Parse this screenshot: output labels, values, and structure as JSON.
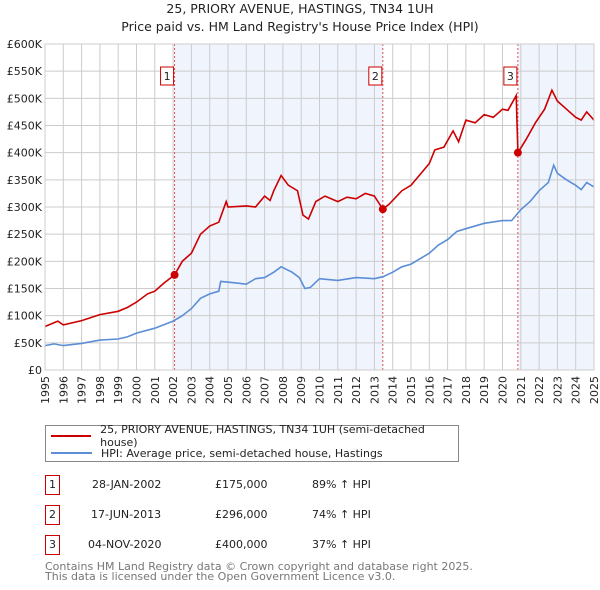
{
  "chart_data": {
    "type": "line",
    "title": "25, PRIORY AVENUE, HASTINGS, TN34 1UH",
    "subtitle": "Price paid vs. HM Land Registry's House Price Index (HPI)",
    "xlim": [
      1995,
      2025
    ],
    "ylim": [
      0,
      600000
    ],
    "x_ticks": [
      "1995",
      "1996",
      "1997",
      "1998",
      "1999",
      "2000",
      "2001",
      "2002",
      "2003",
      "2004",
      "2005",
      "2006",
      "2007",
      "2008",
      "2009",
      "2010",
      "2011",
      "2012",
      "2013",
      "2014",
      "2015",
      "2016",
      "2017",
      "2018",
      "2019",
      "2020",
      "2021",
      "2022",
      "2023",
      "2024",
      "2025"
    ],
    "y_ticks": [
      {
        "v": 0,
        "label": "£0"
      },
      {
        "v": 50000,
        "label": "£50K"
      },
      {
        "v": 100000,
        "label": "£100K"
      },
      {
        "v": 150000,
        "label": "£150K"
      },
      {
        "v": 200000,
        "label": "£200K"
      },
      {
        "v": 250000,
        "label": "£250K"
      },
      {
        "v": 300000,
        "label": "£300K"
      },
      {
        "v": 350000,
        "label": "£350K"
      },
      {
        "v": 400000,
        "label": "£400K"
      },
      {
        "v": 450000,
        "label": "£450K"
      },
      {
        "v": 500000,
        "label": "£500K"
      },
      {
        "v": 550000,
        "label": "£550K"
      },
      {
        "v": 600000,
        "label": "£600K"
      }
    ],
    "grid": true,
    "series": [
      {
        "name": "25, PRIORY AVENUE, HASTINGS, TN34 1UH (semi-detached house)",
        "color": "#cc0000",
        "x": [
          1995,
          1995.7,
          1996,
          1997,
          1998,
          1999,
          1999.5,
          2000,
          2000.6,
          2001,
          2001.5,
          2002.08,
          2002.5,
          2003,
          2003.5,
          2004,
          2004.5,
          2004.9,
          2005,
          2006,
          2006.5,
          2007,
          2007.3,
          2007.5,
          2007.9,
          2008.3,
          2008.8,
          2009.1,
          2009.4,
          2009.8,
          2010.3,
          2011,
          2011.5,
          2012,
          2012.5,
          2013,
          2013.46,
          2013.8,
          2014.5,
          2015,
          2015.5,
          2016,
          2016.3,
          2016.8,
          2017.3,
          2017.6,
          2018,
          2018.5,
          2019,
          2019.5,
          2020,
          2020.3,
          2020.75,
          2020.84,
          2021.3,
          2021.8,
          2022.3,
          2022.7,
          2023,
          2023.5,
          2024,
          2024.3,
          2024.6,
          2025
        ],
        "y": [
          80000,
          90000,
          83000,
          91000,
          102000,
          108000,
          115000,
          125000,
          140000,
          145000,
          160000,
          175000,
          200000,
          215000,
          250000,
          265000,
          272000,
          310000,
          300000,
          302000,
          300000,
          320000,
          312000,
          330000,
          358000,
          340000,
          330000,
          285000,
          278000,
          310000,
          320000,
          310000,
          318000,
          315000,
          325000,
          320000,
          296000,
          305000,
          330000,
          340000,
          360000,
          380000,
          405000,
          410000,
          440000,
          420000,
          460000,
          455000,
          470000,
          465000,
          480000,
          478000,
          505000,
          400000,
          425000,
          455000,
          480000,
          515000,
          495000,
          480000,
          465000,
          460000,
          475000,
          460000
        ]
      },
      {
        "name": "HPI: Average price, semi-detached house, Hastings",
        "color": "#5b8ed6",
        "x": [
          1995,
          1995.5,
          1996,
          1997,
          1998,
          1999,
          1999.5,
          2000,
          2001,
          2002,
          2002.5,
          2003,
          2003.5,
          2004,
          2004.5,
          2004.6,
          2005.5,
          2006,
          2006.5,
          2007,
          2007.5,
          2007.9,
          2008.5,
          2008.9,
          2009.2,
          2009.5,
          2010,
          2011,
          2012,
          2013,
          2013.5,
          2014,
          2014.5,
          2015,
          2016,
          2016.5,
          2017,
          2017.5,
          2018,
          2019,
          2020,
          2020.5,
          2021,
          2021.5,
          2022,
          2022.5,
          2022.8,
          2023,
          2023.5,
          2024,
          2024.3,
          2024.6,
          2025
        ],
        "y": [
          45000,
          48000,
          45000,
          49000,
          55000,
          57000,
          61000,
          68000,
          77000,
          90000,
          100000,
          113000,
          132000,
          140000,
          145000,
          163000,
          160000,
          158000,
          168000,
          170000,
          180000,
          190000,
          180000,
          170000,
          150000,
          152000,
          168000,
          165000,
          170000,
          168000,
          172000,
          180000,
          190000,
          195000,
          215000,
          230000,
          240000,
          255000,
          260000,
          270000,
          275000,
          275000,
          295000,
          310000,
          330000,
          345000,
          377000,
          362000,
          350000,
          340000,
          332000,
          345000,
          337000
        ]
      }
    ],
    "sales": [
      {
        "id": "1",
        "x": 2002.08,
        "price": 175000,
        "date": "28-JAN-2002",
        "price_label": "£175,000",
        "hpi": "89% ↑ HPI"
      },
      {
        "id": "2",
        "x": 2013.46,
        "price": 296000,
        "date": "17-JUN-2013",
        "price_label": "£296,000",
        "hpi": "74% ↑ HPI"
      },
      {
        "id": "3",
        "x": 2020.84,
        "price": 400000,
        "date": "04-NOV-2020",
        "price_label": "£400,000",
        "hpi": "37% ↑ HPI"
      }
    ],
    "legend_position": "below"
  },
  "footer": {
    "line1": "Contains HM Land Registry data © Crown copyright and database right 2025.",
    "line2": "This data is licensed under the Open Government Licence v3.0."
  }
}
